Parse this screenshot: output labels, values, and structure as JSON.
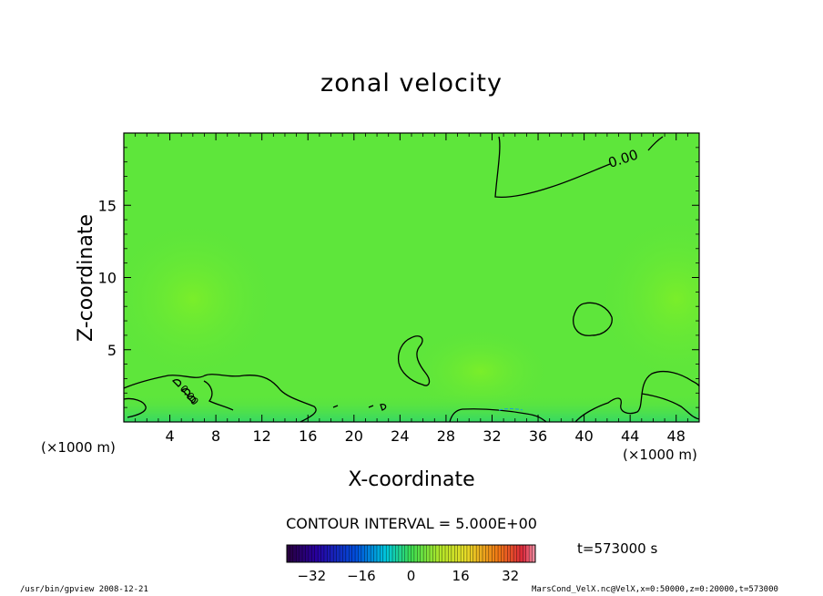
{
  "chart_data": {
    "type": "contour",
    "title": "zonal velocity",
    "xlabel": "X-coordinate",
    "ylabel": "Z-coordinate",
    "x_unit": "(×1000 m)",
    "z_unit": "(×1000 m)",
    "x_ticks": [
      4,
      8,
      12,
      16,
      20,
      24,
      28,
      32,
      36,
      40,
      44,
      48
    ],
    "z_ticks": [
      5,
      10,
      15
    ],
    "xlim": [
      0,
      50
    ],
    "zlim": [
      0,
      20
    ],
    "contour_labels": [
      "0.00",
      "0.00"
    ],
    "contour_interval_text": "CONTOUR INTERVAL = 5.000E+00",
    "colorbar": {
      "range": [
        -40,
        40
      ],
      "tick_values": [
        -32,
        -16,
        0,
        16,
        32
      ],
      "tick_labels": [
        "−32",
        "−16",
        "0",
        "16",
        "32"
      ]
    },
    "time_text": "t=573000 s",
    "colors": {
      "field_base": "#5ee63b",
      "field_light": "#7aee2a",
      "field_low": "#35d865"
    }
  },
  "footer": {
    "left": "/usr/bin/gpview   2008-12-21",
    "right": "MarsCond_VelX.nc@VelX,x=0:50000,z=0:20000,t=573000"
  }
}
